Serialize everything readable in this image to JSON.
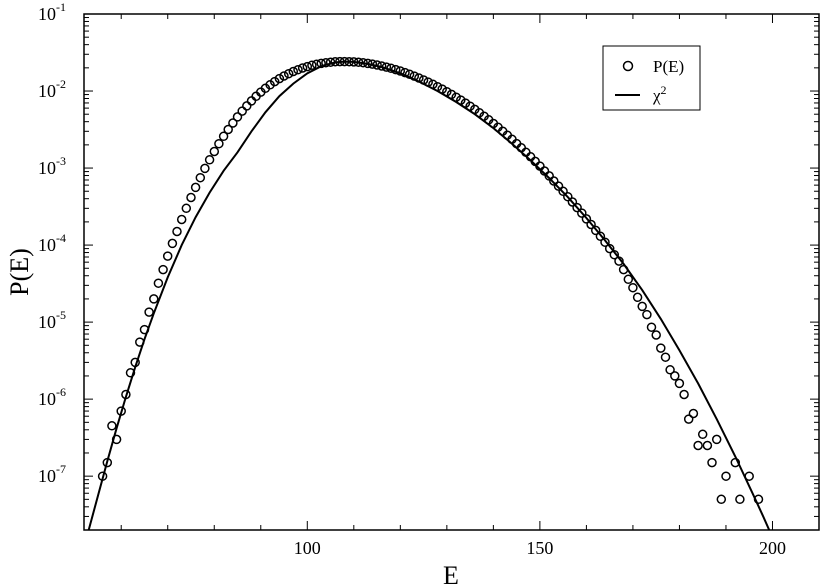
{
  "chart_data": {
    "type": "scatter",
    "title": "",
    "xlabel": "E",
    "ylabel": "P(E)",
    "xlim": [
      52,
      210
    ],
    "ylim": [
      2e-08,
      0.1
    ],
    "yscale": "log",
    "grid": false,
    "legend_position": "top-right",
    "x_ticks": [
      {
        "value": 100,
        "label": "100"
      },
      {
        "value": 150,
        "label": "150"
      },
      {
        "value": 200,
        "label": "200"
      }
    ],
    "y_ticks": [
      {
        "value": 1e-07,
        "base": "10",
        "exp": "-7"
      },
      {
        "value": 1e-06,
        "base": "10",
        "exp": "-6"
      },
      {
        "value": 1e-05,
        "base": "10",
        "exp": "-5"
      },
      {
        "value": 0.0001,
        "base": "10",
        "exp": "-4"
      },
      {
        "value": 0.001,
        "base": "10",
        "exp": "-3"
      },
      {
        "value": 0.01,
        "base": "10",
        "exp": "-2"
      },
      {
        "value": 0.1,
        "base": "10",
        "exp": "-1"
      }
    ],
    "legend": [
      {
        "label": "P(E)",
        "marker": "circle"
      },
      {
        "label_base": "χ",
        "label_sup": "2",
        "marker": "line"
      }
    ],
    "series": [
      {
        "name": "P(E)",
        "style": "open-circle",
        "points": [
          [
            56,
            1e-07
          ],
          [
            57,
            1.5e-07
          ],
          [
            58,
            4.5e-07
          ],
          [
            59,
            3e-07
          ],
          [
            60,
            7e-07
          ],
          [
            61,
            1.15e-06
          ],
          [
            62,
            2.2e-06
          ],
          [
            63,
            3e-06
          ],
          [
            64,
            5.5e-06
          ],
          [
            65,
            8e-06
          ],
          [
            66,
            1.35e-05
          ],
          [
            67,
            2e-05
          ],
          [
            68,
            3.2e-05
          ],
          [
            69,
            4.8e-05
          ],
          [
            70,
            7.2e-05
          ],
          [
            71,
            0.000105
          ],
          [
            72,
            0.00015
          ],
          [
            73,
            0.000215
          ],
          [
            74,
            0.0003
          ],
          [
            75,
            0.000415
          ],
          [
            76,
            0.00056
          ],
          [
            77,
            0.00075
          ],
          [
            78,
            0.00099
          ],
          [
            79,
            0.00128
          ],
          [
            80,
            0.00164
          ],
          [
            81,
            0.00207
          ],
          [
            82,
            0.00258
          ],
          [
            83,
            0.00317
          ],
          [
            84,
            0.00385
          ],
          [
            85,
            0.00462
          ],
          [
            86,
            0.00548
          ],
          [
            87,
            0.00642
          ],
          [
            88,
            0.00744
          ],
          [
            89,
            0.00853
          ],
          [
            90,
            0.00967
          ],
          [
            91,
            0.01085
          ],
          [
            92,
            0.01206
          ],
          [
            93,
            0.01327
          ],
          [
            94,
            0.01448
          ],
          [
            95,
            0.01566
          ],
          [
            96,
            0.01681
          ],
          [
            97,
            0.01791
          ],
          [
            98,
            0.01894
          ],
          [
            99,
            0.0199
          ],
          [
            100,
            0.02078
          ],
          [
            101,
            0.02157
          ],
          [
            102,
            0.02225
          ],
          [
            103,
            0.02283
          ],
          [
            104,
            0.02331
          ],
          [
            105,
            0.02368
          ],
          [
            106,
            0.02393
          ],
          [
            107,
            0.02408
          ],
          [
            108,
            0.02412
          ],
          [
            109,
            0.02406
          ],
          [
            110,
            0.0239
          ],
          [
            111,
            0.02364
          ],
          [
            112,
            0.02329
          ],
          [
            113,
            0.02286
          ],
          [
            114,
            0.02236
          ],
          [
            115,
            0.02179
          ],
          [
            116,
            0.02116
          ],
          [
            117,
            0.02047
          ],
          [
            118,
            0.01974
          ],
          [
            119,
            0.01897
          ],
          [
            120,
            0.01817
          ],
          [
            121,
            0.01734
          ],
          [
            122,
            0.0165
          ],
          [
            123,
            0.01564
          ],
          [
            124,
            0.01478
          ],
          [
            125,
            0.01392
          ],
          [
            126,
            0.01306
          ],
          [
            127,
            0.01222
          ],
          [
            128,
            0.01139
          ],
          [
            129,
            0.01058
          ],
          [
            130,
            0.0098
          ],
          [
            131,
            0.00905
          ],
          [
            132,
            0.00832
          ],
          [
            133,
            0.00763
          ],
          [
            134,
            0.00698
          ],
          [
            135,
            0.00636
          ],
          [
            136,
            0.00577
          ],
          [
            137,
            0.00522
          ],
          [
            138,
            0.00471
          ],
          [
            139,
            0.00423
          ],
          [
            140,
            0.00379
          ],
          [
            141,
            0.00339
          ],
          [
            142,
            0.00301
          ],
          [
            143,
            0.00267
          ],
          [
            144,
            0.00236
          ],
          [
            145,
            0.00208
          ],
          [
            146,
            0.00183
          ],
          [
            147,
            0.0016
          ],
          [
            148,
            0.0014
          ],
          [
            149,
            0.00122
          ],
          [
            150,
            0.00106
          ],
          [
            151,
            0.000915
          ],
          [
            152,
            0.00079
          ],
          [
            153,
            0.00068
          ],
          [
            154,
            0.000583
          ],
          [
            155,
            0.000499
          ],
          [
            156,
            0.000425
          ],
          [
            157,
            0.000362
          ],
          [
            158,
            0.000307
          ],
          [
            159,
            0.00026
          ],
          [
            160,
            0.000219
          ],
          [
            161,
            0.000185
          ],
          [
            162,
            0.000155
          ],
          [
            163,
            0.00013
          ],
          [
            164,
            0.000109
          ],
          [
            165,
            9e-05
          ],
          [
            166,
            7.5e-05
          ],
          [
            167,
            6.2e-05
          ],
          [
            168,
            4.8e-05
          ],
          [
            169,
            3.6e-05
          ],
          [
            170,
            2.8e-05
          ],
          [
            171,
            2.1e-05
          ],
          [
            172,
            1.6e-05
          ],
          [
            173,
            1.25e-05
          ],
          [
            174,
            8.6e-06
          ],
          [
            175,
            6.8e-06
          ],
          [
            176,
            4.6e-06
          ],
          [
            177,
            3.5e-06
          ],
          [
            178,
            2.4e-06
          ],
          [
            179,
            2e-06
          ],
          [
            180,
            1.6e-06
          ],
          [
            181,
            1.15e-06
          ],
          [
            182,
            5.5e-07
          ],
          [
            183,
            6.5e-07
          ],
          [
            184,
            2.5e-07
          ],
          [
            185,
            3.5e-07
          ],
          [
            186,
            2.5e-07
          ],
          [
            187,
            1.5e-07
          ],
          [
            188,
            3e-07
          ],
          [
            189,
            5e-08
          ],
          [
            190,
            1e-07
          ],
          [
            192,
            1.5e-07
          ],
          [
            193,
            5e-08
          ],
          [
            195,
            1e-07
          ],
          [
            197,
            5e-08
          ]
        ]
      },
      {
        "name": "χ2",
        "style": "line",
        "points": [
          [
            53,
            2e-08
          ],
          [
            55,
            5.6e-08
          ],
          [
            57,
            1.56e-07
          ],
          [
            59,
            4.2e-07
          ],
          [
            61,
            1.07e-06
          ],
          [
            63,
            2.6e-06
          ],
          [
            65,
            6e-06
          ],
          [
            67,
            1.3e-05
          ],
          [
            70,
            3.8e-05
          ],
          [
            73,
            0.0001
          ],
          [
            76,
            0.00023
          ],
          [
            79,
            0.00048
          ],
          [
            82,
            0.00092
          ],
          [
            85,
            0.0016
          ],
          [
            88,
            0.003
          ],
          [
            91,
            0.0053
          ],
          [
            94,
            0.0086
          ],
          [
            97,
            0.0125
          ],
          [
            100,
            0.017
          ],
          [
            103,
            0.021
          ],
          [
            106,
            0.0235
          ],
          [
            108,
            0.0241
          ],
          [
            110,
            0.0239
          ],
          [
            113,
            0.0225
          ],
          [
            116,
            0.0205
          ],
          [
            120,
            0.017
          ],
          [
            124,
            0.0133
          ],
          [
            128,
            0.01
          ],
          [
            132,
            0.0072
          ],
          [
            136,
            0.005
          ],
          [
            140,
            0.0033
          ],
          [
            144,
            0.00207
          ],
          [
            148,
            0.00126
          ],
          [
            152,
            0.00074
          ],
          [
            156,
            0.00042
          ],
          [
            160,
            0.000225
          ],
          [
            164,
            0.000115
          ],
          [
            168,
            5.7e-05
          ],
          [
            172,
            2.6e-05
          ],
          [
            176,
            1.1e-05
          ],
          [
            180,
            4.3e-06
          ],
          [
            184,
            1.6e-06
          ],
          [
            188,
            5.5e-07
          ],
          [
            192,
            1.8e-07
          ],
          [
            196,
            5.5e-08
          ],
          [
            198,
            3e-08
          ],
          [
            200,
            1.6e-08
          ]
        ]
      }
    ]
  }
}
